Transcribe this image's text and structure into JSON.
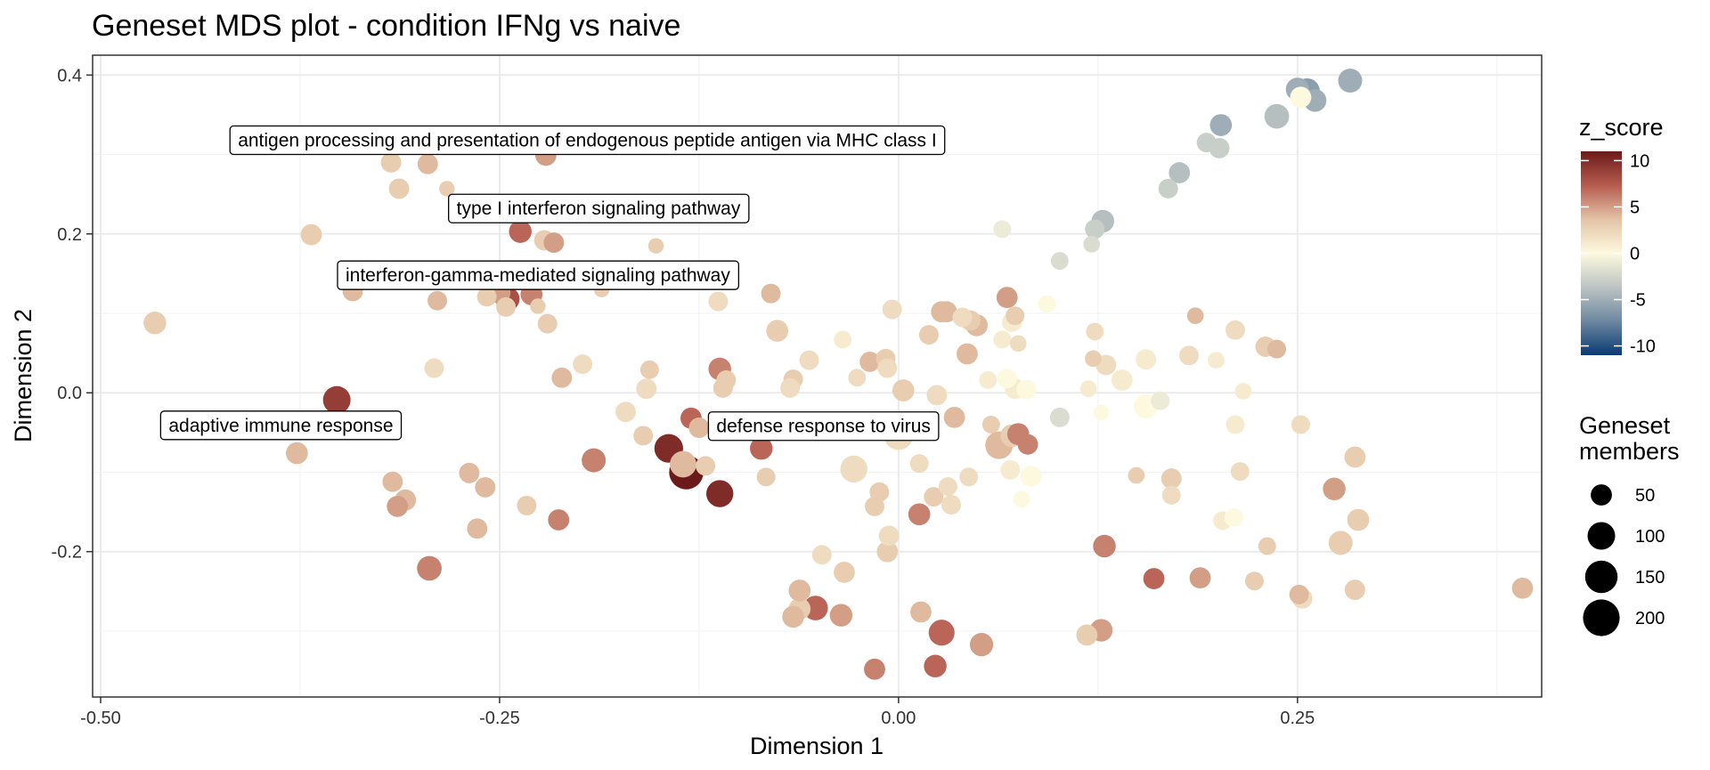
{
  "chart_data": {
    "type": "scatter",
    "title": "Geneset MDS plot - condition IFNg vs naive",
    "xlabel": "Dimension 1",
    "ylabel": "Dimension 2",
    "xlim": [
      -0.505,
      0.403
    ],
    "ylim": [
      -0.383,
      0.425
    ],
    "xticks": [
      -0.5,
      -0.25,
      0.0,
      0.25
    ],
    "xtick_labels": [
      "-0.50",
      "-0.25",
      "0.00",
      "0.25"
    ],
    "yticks": [
      -0.2,
      0.0,
      0.2,
      0.4
    ],
    "ytick_labels": [
      "-0.2",
      "0.0",
      "0.2",
      "0.4"
    ],
    "grid": true,
    "color_legend": {
      "title": "z_score",
      "ticks": [
        10,
        5,
        0,
        -5,
        -10
      ],
      "tick_labels": [
        "10",
        "5",
        "0",
        "-5",
        "-10"
      ],
      "colors": [
        "#6b1a1a",
        "#b65c4f",
        "#e3c3a6",
        "#fdf9df",
        "#bcc4c3",
        "#6d88a0",
        "#0a3a73"
      ],
      "range": [
        -11,
        11
      ]
    },
    "size_legend": {
      "title": [
        "Geneset",
        "members"
      ],
      "values": [
        50,
        100,
        150,
        200
      ],
      "labels": [
        "50",
        "100",
        "150",
        "200"
      ]
    },
    "annotations": [
      {
        "text": "antigen processing and presentation of endogenous peptide antigen via MHC class I",
        "x": -0.195,
        "y": 0.318
      },
      {
        "text": "type I interferon signaling pathway",
        "x": -0.188,
        "y": 0.232
      },
      {
        "text": "interferon-gamma-mediated signaling pathway",
        "x": -0.226,
        "y": 0.148
      },
      {
        "text": "adaptive immune response",
        "x": -0.387,
        "y": -0.041
      },
      {
        "text": "defense response to virus",
        "x": -0.047,
        "y": -0.042
      }
    ],
    "points": [
      {
        "x": 0.283,
        "y": 0.393,
        "size": 70,
        "z": -5
      },
      {
        "x": 0.25,
        "y": 0.382,
        "size": 65,
        "z": -5
      },
      {
        "x": 0.256,
        "y": 0.38,
        "size": 80,
        "z": -6
      },
      {
        "x": 0.261,
        "y": 0.368,
        "size": 60,
        "z": -5
      },
      {
        "x": 0.237,
        "y": 0.348,
        "size": 75,
        "z": -4
      },
      {
        "x": 0.252,
        "y": 0.372,
        "size": 50,
        "z": 0
      },
      {
        "x": 0.202,
        "y": 0.337,
        "size": 55,
        "z": -5
      },
      {
        "x": 0.193,
        "y": 0.315,
        "size": 40,
        "z": -3
      },
      {
        "x": 0.201,
        "y": 0.308,
        "size": 45,
        "z": -3
      },
      {
        "x": 0.176,
        "y": 0.277,
        "size": 50,
        "z": -4
      },
      {
        "x": 0.169,
        "y": 0.257,
        "size": 40,
        "z": -3
      },
      {
        "x": 0.128,
        "y": 0.216,
        "size": 60,
        "z": -4
      },
      {
        "x": 0.123,
        "y": 0.206,
        "size": 40,
        "z": -3
      },
      {
        "x": 0.121,
        "y": 0.187,
        "size": 25,
        "z": -2
      },
      {
        "x": 0.101,
        "y": 0.166,
        "size": 30,
        "z": -2
      },
      {
        "x": 0.065,
        "y": 0.206,
        "size": 30,
        "z": -1
      },
      {
        "x": -0.147,
        "y": 0.322,
        "size": 45,
        "z": 4
      },
      {
        "x": -0.221,
        "y": 0.299,
        "size": 50,
        "z": 5
      },
      {
        "x": -0.318,
        "y": 0.29,
        "size": 45,
        "z": 3
      },
      {
        "x": -0.295,
        "y": 0.288,
        "size": 45,
        "z": 4
      },
      {
        "x": -0.313,
        "y": 0.257,
        "size": 45,
        "z": 3
      },
      {
        "x": -0.283,
        "y": 0.257,
        "size": 20,
        "z": 3
      },
      {
        "x": -0.368,
        "y": 0.199,
        "size": 50,
        "z": 3
      },
      {
        "x": -0.237,
        "y": 0.203,
        "size": 60,
        "z": 7
      },
      {
        "x": -0.222,
        "y": 0.192,
        "size": 45,
        "z": 3
      },
      {
        "x": -0.216,
        "y": 0.189,
        "size": 45,
        "z": 5
      },
      {
        "x": -0.152,
        "y": 0.185,
        "size": 20,
        "z": 3
      },
      {
        "x": -0.342,
        "y": 0.128,
        "size": 45,
        "z": 4
      },
      {
        "x": -0.289,
        "y": 0.116,
        "size": 40,
        "z": 4
      },
      {
        "x": -0.258,
        "y": 0.121,
        "size": 40,
        "z": 3
      },
      {
        "x": -0.25,
        "y": 0.126,
        "size": 55,
        "z": 5
      },
      {
        "x": -0.245,
        "y": 0.118,
        "size": 70,
        "z": 8
      },
      {
        "x": -0.23,
        "y": 0.124,
        "size": 55,
        "z": 6
      },
      {
        "x": -0.246,
        "y": 0.108,
        "size": 40,
        "z": 3
      },
      {
        "x": -0.226,
        "y": 0.109,
        "size": 20,
        "z": 3
      },
      {
        "x": -0.22,
        "y": 0.087,
        "size": 40,
        "z": 3
      },
      {
        "x": -0.186,
        "y": 0.13,
        "size": 20,
        "z": 3
      },
      {
        "x": -0.113,
        "y": 0.115,
        "size": 40,
        "z": 2
      },
      {
        "x": -0.08,
        "y": 0.125,
        "size": 40,
        "z": 4
      },
      {
        "x": -0.466,
        "y": 0.088,
        "size": 60,
        "z": 3
      },
      {
        "x": -0.291,
        "y": 0.031,
        "size": 40,
        "z": 2
      },
      {
        "x": -0.211,
        "y": 0.019,
        "size": 45,
        "z": 4
      },
      {
        "x": -0.198,
        "y": 0.036,
        "size": 40,
        "z": 2
      },
      {
        "x": -0.158,
        "y": 0.005,
        "size": 45,
        "z": 2
      },
      {
        "x": -0.156,
        "y": 0.029,
        "size": 35,
        "z": 3
      },
      {
        "x": -0.171,
        "y": -0.024,
        "size": 45,
        "z": 2
      },
      {
        "x": -0.112,
        "y": 0.03,
        "size": 60,
        "z": 6
      },
      {
        "x": -0.108,
        "y": 0.016,
        "size": 40,
        "z": 3
      },
      {
        "x": -0.11,
        "y": 0.006,
        "size": 40,
        "z": 3
      },
      {
        "x": -0.076,
        "y": 0.078,
        "size": 55,
        "z": 3
      },
      {
        "x": -0.056,
        "y": 0.041,
        "size": 40,
        "z": 2
      },
      {
        "x": -0.066,
        "y": 0.017,
        "size": 40,
        "z": 3
      },
      {
        "x": -0.068,
        "y": 0.006,
        "size": 40,
        "z": 2
      },
      {
        "x": -0.035,
        "y": 0.067,
        "size": 30,
        "z": 1
      },
      {
        "x": -0.018,
        "y": 0.039,
        "size": 45,
        "z": 4
      },
      {
        "x": -0.008,
        "y": 0.043,
        "size": 40,
        "z": 3
      },
      {
        "x": -0.007,
        "y": 0.031,
        "size": 40,
        "z": 2
      },
      {
        "x": -0.026,
        "y": 0.019,
        "size": 30,
        "z": 2
      },
      {
        "x": -0.004,
        "y": 0.105,
        "size": 40,
        "z": 2
      },
      {
        "x": 0.027,
        "y": 0.102,
        "size": 50,
        "z": 4
      },
      {
        "x": 0.03,
        "y": 0.102,
        "size": 50,
        "z": 4
      },
      {
        "x": 0.019,
        "y": 0.073,
        "size": 40,
        "z": 3
      },
      {
        "x": 0.04,
        "y": 0.095,
        "size": 40,
        "z": 2
      },
      {
        "x": 0.045,
        "y": 0.091,
        "size": 45,
        "z": 3
      },
      {
        "x": 0.049,
        "y": 0.085,
        "size": 55,
        "z": 4
      },
      {
        "x": 0.043,
        "y": 0.049,
        "size": 50,
        "z": 4
      },
      {
        "x": 0.068,
        "y": 0.12,
        "size": 50,
        "z": 5
      },
      {
        "x": 0.073,
        "y": 0.097,
        "size": 35,
        "z": 3
      },
      {
        "x": 0.071,
        "y": 0.089,
        "size": 40,
        "z": 1
      },
      {
        "x": 0.065,
        "y": 0.067,
        "size": 30,
        "z": 1
      },
      {
        "x": 0.075,
        "y": 0.062,
        "size": 25,
        "z": 2
      },
      {
        "x": 0.003,
        "y": 0.003,
        "size": 55,
        "z": 3
      },
      {
        "x": 0.024,
        "y": -0.003,
        "size": 45,
        "z": 2
      },
      {
        "x": 0.056,
        "y": 0.016,
        "size": 30,
        "z": 1
      },
      {
        "x": 0.068,
        "y": 0.018,
        "size": 40,
        "z": 0
      },
      {
        "x": 0.073,
        "y": 0.005,
        "size": 45,
        "z": 1
      },
      {
        "x": 0.08,
        "y": 0.004,
        "size": 40,
        "z": 0
      },
      {
        "x": 0.093,
        "y": 0.112,
        "size": 30,
        "z": 0
      },
      {
        "x": 0.123,
        "y": 0.077,
        "size": 30,
        "z": 2
      },
      {
        "x": 0.122,
        "y": 0.043,
        "size": 25,
        "z": 3
      },
      {
        "x": 0.13,
        "y": 0.035,
        "size": 45,
        "z": 2
      },
      {
        "x": 0.155,
        "y": 0.042,
        "size": 45,
        "z": 1
      },
      {
        "x": 0.14,
        "y": 0.016,
        "size": 50,
        "z": 1
      },
      {
        "x": 0.119,
        "y": 0.005,
        "size": 25,
        "z": 1
      },
      {
        "x": 0.127,
        "y": -0.025,
        "size": 20,
        "z": 0
      },
      {
        "x": 0.101,
        "y": -0.031,
        "size": 40,
        "z": -2
      },
      {
        "x": 0.155,
        "y": -0.017,
        "size": 70,
        "z": 0
      },
      {
        "x": 0.164,
        "y": -0.01,
        "size": 35,
        "z": -1
      },
      {
        "x": 0.182,
        "y": 0.047,
        "size": 40,
        "z": 2
      },
      {
        "x": 0.186,
        "y": 0.097,
        "size": 25,
        "z": 4
      },
      {
        "x": 0.211,
        "y": 0.079,
        "size": 40,
        "z": 2
      },
      {
        "x": 0.199,
        "y": 0.041,
        "size": 25,
        "z": 1
      },
      {
        "x": 0.23,
        "y": 0.058,
        "size": 45,
        "z": 3
      },
      {
        "x": 0.237,
        "y": 0.055,
        "size": 35,
        "z": 4
      },
      {
        "x": 0.216,
        "y": 0.002,
        "size": 25,
        "z": 1
      },
      {
        "x": 0.211,
        "y": -0.04,
        "size": 35,
        "z": 1
      },
      {
        "x": 0.252,
        "y": -0.04,
        "size": 35,
        "z": 2
      },
      {
        "x": 0.149,
        "y": -0.104,
        "size": 25,
        "z": 3
      },
      {
        "x": 0.171,
        "y": -0.108,
        "size": 45,
        "z": 3
      },
      {
        "x": 0.171,
        "y": -0.129,
        "size": 35,
        "z": 2
      },
      {
        "x": 0.214,
        "y": -0.099,
        "size": 35,
        "z": 2
      },
      {
        "x": 0.203,
        "y": -0.161,
        "size": 35,
        "z": 1
      },
      {
        "x": 0.21,
        "y": -0.157,
        "size": 35,
        "z": 0
      },
      {
        "x": 0.231,
        "y": -0.193,
        "size": 30,
        "z": 3
      },
      {
        "x": 0.273,
        "y": -0.121,
        "size": 60,
        "z": 5
      },
      {
        "x": 0.286,
        "y": -0.081,
        "size": 50,
        "z": 3
      },
      {
        "x": 0.288,
        "y": -0.16,
        "size": 55,
        "z": 3
      },
      {
        "x": 0.277,
        "y": -0.189,
        "size": 70,
        "z": 3
      },
      {
        "x": 0.286,
        "y": -0.248,
        "size": 45,
        "z": 3
      },
      {
        "x": 0.251,
        "y": -0.254,
        "size": 40,
        "z": 4
      },
      {
        "x": 0.253,
        "y": -0.259,
        "size": 45,
        "z": 2
      },
      {
        "x": 0.223,
        "y": -0.237,
        "size": 35,
        "z": 3
      },
      {
        "x": 0.189,
        "y": -0.233,
        "size": 50,
        "z": 5
      },
      {
        "x": 0.16,
        "y": -0.234,
        "size": 50,
        "z": 7
      },
      {
        "x": 0.391,
        "y": -0.246,
        "size": 50,
        "z": 4
      },
      {
        "x": 0.129,
        "y": -0.193,
        "size": 60,
        "z": 6
      },
      {
        "x": 0.127,
        "y": -0.299,
        "size": 60,
        "z": 5
      },
      {
        "x": 0.118,
        "y": -0.305,
        "size": 50,
        "z": 3
      },
      {
        "x": 0.052,
        "y": -0.317,
        "size": 65,
        "z": 5
      },
      {
        "x": 0.027,
        "y": -0.302,
        "size": 85,
        "z": 7
      },
      {
        "x": 0.023,
        "y": -0.344,
        "size": 60,
        "z": 7
      },
      {
        "x": -0.015,
        "y": -0.348,
        "size": 50,
        "z": 6
      },
      {
        "x": 0.014,
        "y": -0.276,
        "size": 50,
        "z": 4
      },
      {
        "x": -0.036,
        "y": -0.28,
        "size": 60,
        "z": 5
      },
      {
        "x": -0.052,
        "y": -0.271,
        "size": 75,
        "z": 7
      },
      {
        "x": -0.062,
        "y": -0.272,
        "size": 55,
        "z": 3
      },
      {
        "x": -0.066,
        "y": -0.282,
        "size": 55,
        "z": 4
      },
      {
        "x": -0.062,
        "y": -0.249,
        "size": 55,
        "z": 4
      },
      {
        "x": -0.048,
        "y": -0.204,
        "size": 40,
        "z": 2
      },
      {
        "x": -0.034,
        "y": -0.226,
        "size": 50,
        "z": 3
      },
      {
        "x": -0.007,
        "y": -0.2,
        "size": 50,
        "z": 3
      },
      {
        "x": -0.006,
        "y": -0.18,
        "size": 45,
        "z": 2
      },
      {
        "x": -0.015,
        "y": -0.143,
        "size": 40,
        "z": 3
      },
      {
        "x": 0.013,
        "y": -0.153,
        "size": 55,
        "z": 6
      },
      {
        "x": -0.028,
        "y": -0.096,
        "size": 95,
        "z": 2
      },
      {
        "x": -0.012,
        "y": -0.125,
        "size": 40,
        "z": 3
      },
      {
        "x": 0.022,
        "y": -0.131,
        "size": 40,
        "z": 3
      },
      {
        "x": 0.031,
        "y": -0.118,
        "size": 35,
        "z": 2
      },
      {
        "x": 0.033,
        "y": -0.141,
        "size": 40,
        "z": 2
      },
      {
        "x": 0.044,
        "y": -0.106,
        "size": 35,
        "z": 2
      },
      {
        "x": 0.013,
        "y": -0.089,
        "size": 35,
        "z": 2
      },
      {
        "x": 0.0,
        "y": -0.054,
        "size": 110,
        "z": 2
      },
      {
        "x": 0.014,
        "y": -0.045,
        "size": 50,
        "z": 2
      },
      {
        "x": 0.035,
        "y": -0.031,
        "size": 50,
        "z": 4
      },
      {
        "x": 0.058,
        "y": -0.04,
        "size": 30,
        "z": 3
      },
      {
        "x": 0.063,
        "y": -0.066,
        "size": 100,
        "z": 4
      },
      {
        "x": 0.071,
        "y": -0.054,
        "size": 60,
        "z": 3
      },
      {
        "x": 0.075,
        "y": -0.052,
        "size": 55,
        "z": 6
      },
      {
        "x": 0.081,
        "y": -0.065,
        "size": 45,
        "z": 6
      },
      {
        "x": 0.07,
        "y": -0.097,
        "size": 40,
        "z": 1
      },
      {
        "x": 0.083,
        "y": -0.105,
        "size": 50,
        "z": 0
      },
      {
        "x": 0.077,
        "y": -0.134,
        "size": 25,
        "z": 0
      },
      {
        "x": -0.086,
        "y": -0.07,
        "size": 60,
        "z": 7
      },
      {
        "x": -0.083,
        "y": -0.106,
        "size": 35,
        "z": 3
      },
      {
        "x": -0.13,
        "y": -0.032,
        "size": 50,
        "z": 7
      },
      {
        "x": -0.125,
        "y": -0.044,
        "size": 45,
        "z": 4
      },
      {
        "x": -0.121,
        "y": -0.092,
        "size": 40,
        "z": 3
      },
      {
        "x": -0.144,
        "y": -0.07,
        "size": 110,
        "z": 10
      },
      {
        "x": -0.135,
        "y": -0.09,
        "size": 90,
        "z": 4
      },
      {
        "x": -0.133,
        "y": -0.1,
        "size": 170,
        "z": 11
      },
      {
        "x": -0.112,
        "y": -0.127,
        "size": 95,
        "z": 10
      },
      {
        "x": -0.16,
        "y": -0.054,
        "size": 40,
        "z": 3
      },
      {
        "x": -0.191,
        "y": -0.085,
        "size": 70,
        "z": 6
      },
      {
        "x": -0.233,
        "y": -0.142,
        "size": 40,
        "z": 3
      },
      {
        "x": -0.213,
        "y": -0.16,
        "size": 50,
        "z": 6
      },
      {
        "x": -0.269,
        "y": -0.101,
        "size": 45,
        "z": 4
      },
      {
        "x": -0.259,
        "y": -0.119,
        "size": 45,
        "z": 4
      },
      {
        "x": -0.264,
        "y": -0.171,
        "size": 45,
        "z": 4
      },
      {
        "x": -0.317,
        "y": -0.112,
        "size": 45,
        "z": 4
      },
      {
        "x": -0.309,
        "y": -0.135,
        "size": 50,
        "z": 4
      },
      {
        "x": -0.314,
        "y": -0.143,
        "size": 50,
        "z": 5
      },
      {
        "x": -0.294,
        "y": -0.221,
        "size": 75,
        "z": 6
      },
      {
        "x": -0.377,
        "y": -0.076,
        "size": 55,
        "z": 4
      },
      {
        "x": -0.352,
        "y": -0.009,
        "size": 100,
        "z": 9
      }
    ]
  }
}
